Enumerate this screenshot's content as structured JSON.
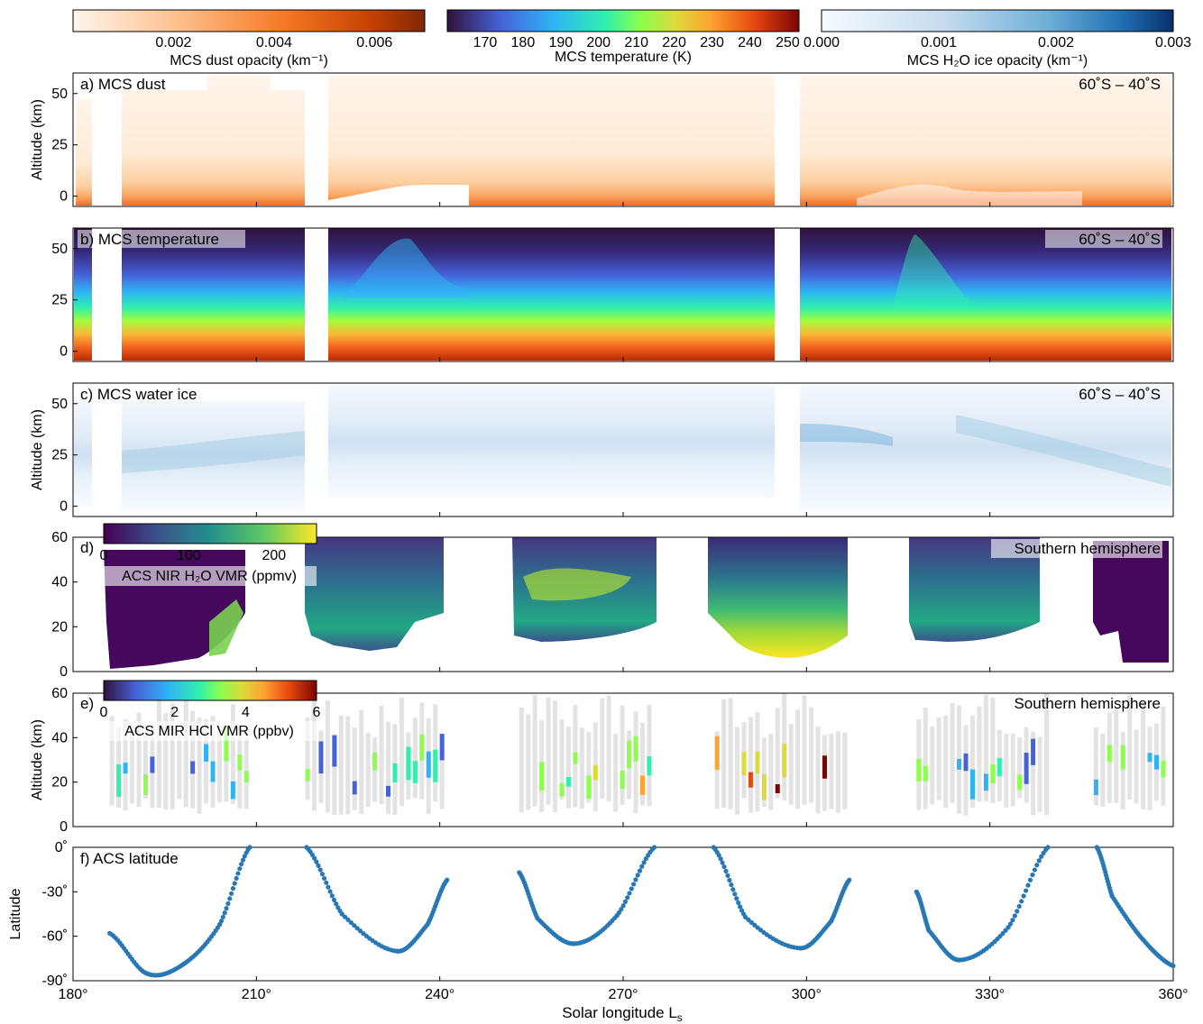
{
  "figure": {
    "xlabel": "Solar longitude L",
    "xlabel_sub": "s",
    "x_ticks": [
      "180°",
      "210°",
      "240°",
      "270°",
      "300°",
      "330°",
      "360°"
    ]
  },
  "colorbars": {
    "dust": {
      "label": "MCS dust opacity (km⁻¹)",
      "ticks": [
        "0.002",
        "0.004",
        "0.006"
      ],
      "range": [
        0,
        0.007
      ]
    },
    "temperature": {
      "label": "MCS temperature (K)",
      "ticks": [
        "170",
        "180",
        "190",
        "200",
        "210",
        "220",
        "230",
        "240",
        "250"
      ],
      "range": [
        160,
        253
      ]
    },
    "ice": {
      "label": "MCS H₂O ice opacity (km⁻¹)",
      "ticks": [
        "0.000",
        "0.001",
        "0.002",
        "0.003"
      ],
      "range": [
        0,
        0.003
      ]
    },
    "h2o": {
      "label": "ACS NIR H₂O VMR (ppmv)",
      "ticks": [
        "0",
        "100",
        "200"
      ],
      "range": [
        0,
        250
      ]
    },
    "hcl": {
      "label": "ACS MIR HCl VMR (ppbv)",
      "ticks": [
        "0",
        "2",
        "4",
        "6"
      ],
      "range": [
        0,
        6
      ]
    }
  },
  "panels": {
    "a": {
      "title": "a)  MCS dust",
      "region": "60˚S – 40˚S",
      "ylabel": "Altitude (km)",
      "yticks": [
        "0",
        "25",
        "50"
      ]
    },
    "b": {
      "title": "b)  MCS temperature",
      "region": "60˚S – 40˚S",
      "yticks": [
        "0",
        "25",
        "50"
      ]
    },
    "c": {
      "title": "c)  MCS water ice",
      "region": "60˚S – 40˚S",
      "ylabel": "Altitude (km)",
      "yticks": [
        "0",
        "25",
        "50"
      ]
    },
    "d": {
      "title": "d)",
      "region": "Southern hemisphere",
      "yticks": [
        "0",
        "20",
        "40",
        "60"
      ]
    },
    "e": {
      "title": "e)",
      "region": "Southern hemisphere",
      "ylabel": "Altitude (km)",
      "yticks": [
        "0",
        "20",
        "40",
        "60"
      ]
    },
    "f": {
      "title": "f)  ACS latitude",
      "ylabel": "Latitude",
      "yticks": [
        "0˚",
        "-30˚",
        "-60˚",
        "-90˚"
      ]
    }
  },
  "chart_data": [
    {
      "type": "heatmap",
      "panel": "a",
      "title": "MCS dust",
      "x_range": [
        180,
        360
      ],
      "y_range": [
        -5,
        60
      ],
      "colorbar": "MCS dust opacity (km⁻¹)",
      "data_gaps_ls": [
        [
          181.5,
          187
        ],
        [
          219,
          223
        ],
        [
          292.5,
          296.5
        ]
      ]
    },
    {
      "type": "heatmap",
      "panel": "b",
      "title": "MCS temperature",
      "x_range": [
        180,
        360
      ],
      "y_range": [
        -5,
        60
      ],
      "colorbar": "MCS temperature (K)",
      "data_gaps_ls": [
        [
          181.5,
          187
        ],
        [
          219,
          223
        ],
        [
          292.5,
          296.5
        ]
      ]
    },
    {
      "type": "heatmap",
      "panel": "c",
      "title": "MCS water ice",
      "x_range": [
        180,
        360
      ],
      "y_range": [
        -5,
        60
      ],
      "colorbar": "MCS H₂O ice opacity (km⁻¹)",
      "data_gaps_ls": [
        [
          181.5,
          187
        ],
        [
          219,
          223
        ],
        [
          292.5,
          296.5
        ]
      ]
    },
    {
      "type": "heatmap",
      "panel": "d",
      "title": "ACS NIR H₂O VMR (ppmv)",
      "x_range": [
        180,
        360
      ],
      "y_range": [
        0,
        60
      ],
      "segments_ls": [
        [
          186,
          208
        ],
        [
          218,
          241
        ],
        [
          253,
          275
        ],
        [
          285,
          307
        ],
        [
          318,
          340
        ],
        [
          347,
          359
        ]
      ]
    },
    {
      "type": "heatmap",
      "panel": "e",
      "title": "ACS MIR HCl VMR (ppbv)",
      "x_range": [
        180,
        360
      ],
      "y_range": [
        0,
        60
      ],
      "profile_segments_ls": [
        [
          186,
          208
        ],
        [
          218,
          241
        ],
        [
          253,
          275
        ],
        [
          285,
          307
        ],
        [
          318,
          340
        ],
        [
          347,
          359
        ]
      ]
    },
    {
      "type": "scatter",
      "panel": "f",
      "title": "ACS latitude",
      "xlabel": "Solar longitude Ls",
      "ylabel": "Latitude",
      "xlim": [
        180,
        360
      ],
      "ylim": [
        -90,
        0
      ],
      "arcs": [
        {
          "x": [
            186,
            192,
            198,
            204,
            208.9
          ],
          "y": [
            -58,
            -85,
            -79,
            -52,
            0
          ]
        },
        {
          "x": [
            218.2,
            224,
            233,
            238,
            241.2
          ],
          "y": [
            0,
            -45,
            -70,
            -52,
            -22
          ]
        },
        {
          "x": [
            253,
            256,
            262,
            269,
            275.1
          ],
          "y": [
            -17,
            -48,
            -65,
            -46,
            0
          ]
        },
        {
          "x": [
            284.8,
            290,
            299,
            304,
            307
          ],
          "y": [
            0,
            -47,
            -68,
            -50,
            -22
          ]
        },
        {
          "x": [
            318,
            320,
            325,
            333,
            339.5
          ],
          "y": [
            -30,
            -56,
            -76,
            -54,
            0
          ]
        },
        {
          "x": [
            347.5,
            350,
            355,
            360
          ],
          "y": [
            0,
            -33,
            -62,
            -80
          ]
        }
      ]
    }
  ]
}
